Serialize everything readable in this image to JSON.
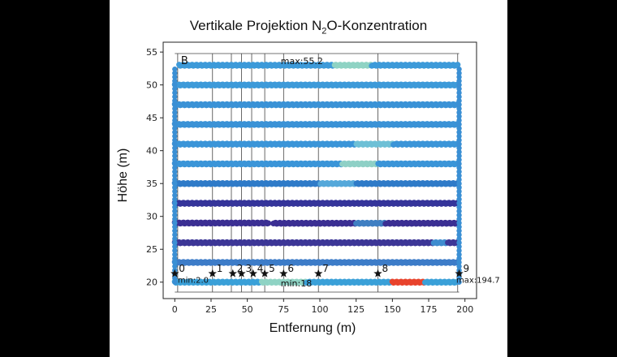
{
  "title": {
    "prefix": "Vertikale Projektion N",
    "subscript": "2",
    "suffix": "O-Konzentration"
  },
  "chart_data": {
    "type": "scatter",
    "xlabel": "Entfernung (m)",
    "ylabel": "Höhe (m)",
    "xlim": [
      -8,
      208
    ],
    "ylim": [
      17.5,
      56.5
    ],
    "xticks": [
      "0",
      "25",
      "50",
      "75",
      "100",
      "125",
      "150",
      "175",
      "200"
    ],
    "xtick_values": [
      0,
      25,
      50,
      75,
      100,
      125,
      150,
      175,
      200
    ],
    "yticks": [
      "20",
      "25",
      "30",
      "35",
      "40",
      "45",
      "50",
      "55"
    ],
    "ytick_values": [
      20,
      25,
      30,
      35,
      40,
      45,
      50,
      55
    ],
    "panel_label": "B",
    "annotations": {
      "max_top": "max:55.2",
      "min_bottom": "min:18",
      "min_conc": "min:2.0",
      "max_conc": "max:194.7"
    },
    "vertical_lines_x": [
      2,
      26,
      39,
      46,
      53,
      62,
      75,
      99,
      140,
      195
    ],
    "stations": [
      {
        "label": "0",
        "x": 0
      },
      {
        "label": "1",
        "x": 26
      },
      {
        "label": "2",
        "x": 40
      },
      {
        "label": "3",
        "x": 46
      },
      {
        "label": "4",
        "x": 54
      },
      {
        "label": "5",
        "x": 62
      },
      {
        "label": "6",
        "x": 75
      },
      {
        "label": "7",
        "x": 99
      },
      {
        "label": "8",
        "x": 140
      },
      {
        "label": "9",
        "x": 196
      }
    ],
    "station_height": 21.3,
    "track_start": 0,
    "track_end": 196,
    "series": [
      {
        "height": 53,
        "color": "#3d9ad9",
        "segments": [
          [
            3,
            195
          ]
        ],
        "highlights": [
          [
            110,
            135,
            "#8fd3c4"
          ]
        ]
      },
      {
        "height": 50,
        "color": "#3d9ad9",
        "segments": [
          [
            0,
            195
          ]
        ],
        "highlights": []
      },
      {
        "height": 47,
        "color": "#3a92d6",
        "segments": [
          [
            0,
            195
          ]
        ],
        "highlights": []
      },
      {
        "height": 44,
        "color": "#3a92d6",
        "segments": [
          [
            0,
            195
          ]
        ],
        "highlights": []
      },
      {
        "height": 41,
        "color": "#3b95d8",
        "segments": [
          [
            0,
            195
          ]
        ],
        "highlights": [
          [
            125,
            150,
            "#6ec0d6"
          ]
        ]
      },
      {
        "height": 38,
        "color": "#3b95d8",
        "segments": [
          [
            0,
            195
          ]
        ],
        "highlights": [
          [
            115,
            140,
            "#8fd0c6"
          ]
        ]
      },
      {
        "height": 35,
        "color": "#2f7bc8",
        "segments": [
          [
            0,
            195
          ]
        ],
        "highlights": [
          [
            100,
            125,
            "#55a8da"
          ]
        ]
      },
      {
        "height": 32,
        "color": "#35349a",
        "segments": [
          [
            0,
            195
          ]
        ],
        "highlights": []
      },
      {
        "height": 29,
        "color": "#3b2f93",
        "segments": [
          [
            0,
            65
          ],
          [
            68,
            195
          ]
        ],
        "highlights": [
          [
            125,
            145,
            "#3f7fc2"
          ]
        ]
      },
      {
        "height": 26,
        "color": "#3d3797",
        "segments": [
          [
            0,
            195
          ]
        ],
        "highlights": [
          [
            178,
            188,
            "#3f8ccf"
          ]
        ]
      },
      {
        "height": 23,
        "color": "#3d7cc8",
        "segments": [
          [
            0,
            195
          ]
        ],
        "highlights": []
      },
      {
        "height": 20,
        "color": "#3aa0d8",
        "segments": [
          [
            0,
            195
          ]
        ],
        "highlights": [
          [
            60,
            90,
            "#8fd3c4"
          ],
          [
            150,
            172,
            "#e8432c"
          ]
        ]
      }
    ]
  }
}
